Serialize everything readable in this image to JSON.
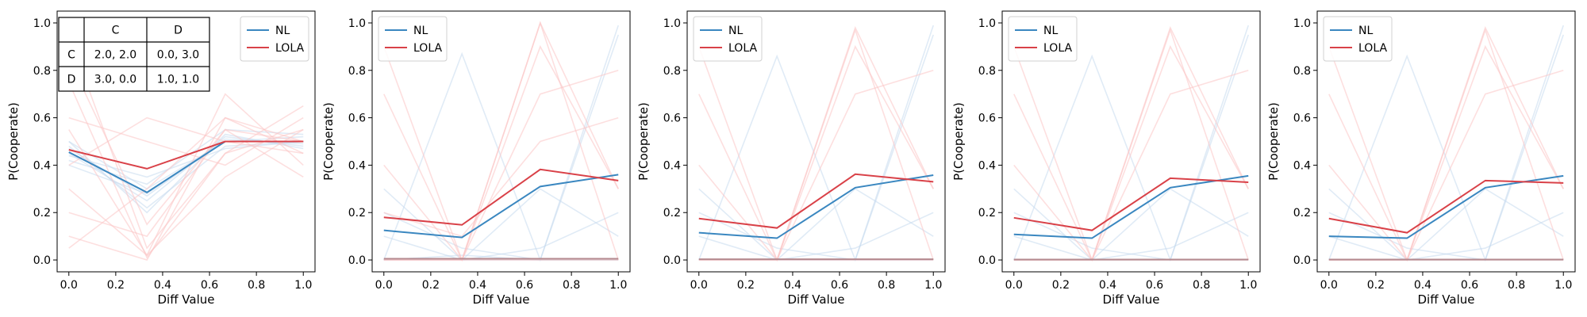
{
  "colors": {
    "nl": "#3a87c0",
    "lola": "#d94148",
    "nl_faint": "#c6dbef",
    "lola_faint": "#fbc4c4"
  },
  "chart_data": [
    {
      "type": "line",
      "xlabel": "Diff Value",
      "ylabel": "P(Cooperate)",
      "xlim": [
        -0.05,
        1.05
      ],
      "ylim": [
        -0.05,
        1.05
      ],
      "xticks": [
        "0.0",
        "0.2",
        "0.4",
        "0.6",
        "0.8",
        "1.0"
      ],
      "yticks": [
        "0.0",
        "0.2",
        "0.4",
        "0.6",
        "0.8",
        "1.0"
      ],
      "legend": {
        "placement": "top-right",
        "entries": [
          "NL",
          "LOLA"
        ]
      },
      "x": [
        0.0,
        0.333,
        0.667,
        1.0
      ],
      "series": [
        {
          "name": "NL",
          "values": [
            0.455,
            0.285,
            0.5,
            0.5
          ]
        },
        {
          "name": "LOLA",
          "values": [
            0.465,
            0.385,
            0.5,
            0.5
          ]
        }
      ],
      "faint_series": {
        "NL": [
          [
            0.5,
            0.3,
            0.5,
            0.5
          ],
          [
            0.45,
            0.25,
            0.52,
            0.48
          ],
          [
            0.42,
            0.32,
            0.55,
            0.53
          ],
          [
            0.48,
            0.22,
            0.48,
            0.5
          ],
          [
            0.4,
            0.28,
            0.5,
            0.52
          ],
          [
            0.5,
            0.2,
            0.53,
            0.47
          ],
          [
            0.44,
            0.35,
            0.47,
            0.5
          ],
          [
            0.47,
            0.27,
            0.51,
            0.49
          ]
        ],
        "LOLA": [
          [
            0.1,
            0.0,
            0.6,
            0.45
          ],
          [
            0.95,
            0.05,
            0.45,
            0.55
          ],
          [
            0.3,
            0.02,
            0.7,
            0.4
          ],
          [
            0.6,
            0.5,
            0.4,
            0.6
          ],
          [
            0.2,
            0.1,
            0.55,
            0.35
          ],
          [
            0.75,
            0.01,
            0.45,
            0.65
          ],
          [
            0.05,
            0.3,
            0.6,
            0.5
          ],
          [
            0.55,
            0.02,
            0.35,
            0.55
          ],
          [
            0.4,
            0.6,
            0.5,
            0.45
          ],
          [
            0.85,
            0.15,
            0.55,
            0.5
          ]
        ]
      },
      "payoff_table": {
        "col_headers": [
          "C",
          "D"
        ],
        "rows": [
          {
            "label": "C",
            "cells": [
              "2.0, 2.0",
              "0.0, 3.0"
            ]
          },
          {
            "label": "D",
            "cells": [
              "3.0, 0.0",
              "1.0, 1.0"
            ]
          }
        ]
      }
    },
    {
      "type": "line",
      "xlabel": "Diff Value",
      "ylabel": "P(Cooperate)",
      "xlim": [
        -0.05,
        1.05
      ],
      "ylim": [
        -0.05,
        1.05
      ],
      "xticks": [
        "0.0",
        "0.2",
        "0.4",
        "0.6",
        "0.8",
        "1.0"
      ],
      "yticks": [
        "0.0",
        "0.2",
        "0.4",
        "0.6",
        "0.8",
        "1.0"
      ],
      "legend": {
        "placement": "top-left",
        "entries": [
          "NL",
          "LOLA"
        ]
      },
      "x": [
        0.0,
        0.333,
        0.667,
        1.0
      ],
      "series": [
        {
          "name": "NL",
          "values": [
            0.125,
            0.095,
            0.31,
            0.36
          ]
        },
        {
          "name": "LOLA",
          "values": [
            0.18,
            0.148,
            0.382,
            0.335
          ]
        },
        {
          "name": "",
          "values": [
            0.005,
            0.005,
            0.005,
            0.005
          ]
        }
      ],
      "faint_series": {
        "NL": [
          [
            0.0,
            0.87,
            0.0,
            0.99
          ],
          [
            0.3,
            0.0,
            0.0,
            0.95
          ],
          [
            0.0,
            0.0,
            0.05,
            0.2
          ],
          [
            0.2,
            0.05,
            0.0,
            0.0
          ],
          [
            0.1,
            0.0,
            0.3,
            0.1
          ],
          [
            0.0,
            0.02,
            0.0,
            0.0
          ]
        ],
        "LOLA": [
          [
            0.7,
            0.0,
            1.0,
            0.3
          ],
          [
            0.0,
            0.0,
            1.0,
            0.0
          ],
          [
            0.4,
            0.0,
            0.7,
            0.8
          ],
          [
            0.9,
            0.0,
            0.0,
            0.0
          ],
          [
            0.0,
            0.0,
            0.9,
            0.3
          ],
          [
            0.2,
            0.1,
            0.5,
            0.6
          ]
        ]
      }
    },
    {
      "type": "line",
      "xlabel": "Diff Value",
      "ylabel": "P(Cooperate)",
      "xlim": [
        -0.05,
        1.05
      ],
      "ylim": [
        -0.05,
        1.05
      ],
      "xticks": [
        "0.0",
        "0.2",
        "0.4",
        "0.6",
        "0.8",
        "1.0"
      ],
      "yticks": [
        "0.0",
        "0.2",
        "0.4",
        "0.6",
        "0.8",
        "1.0"
      ],
      "legend": {
        "placement": "top-left",
        "entries": [
          "NL",
          "LOLA"
        ]
      },
      "x": [
        0.0,
        0.333,
        0.667,
        1.0
      ],
      "series": [
        {
          "name": "NL",
          "values": [
            0.115,
            0.092,
            0.305,
            0.358
          ]
        },
        {
          "name": "LOLA",
          "values": [
            0.175,
            0.135,
            0.362,
            0.33
          ]
        },
        {
          "name": "",
          "values": [
            0.003,
            0.003,
            0.003,
            0.003
          ]
        }
      ],
      "faint_series": {
        "NL": [
          [
            0.0,
            0.86,
            0.0,
            0.99
          ],
          [
            0.3,
            0.0,
            0.0,
            0.95
          ],
          [
            0.0,
            0.0,
            0.05,
            0.2
          ],
          [
            0.2,
            0.05,
            0.0,
            0.0
          ],
          [
            0.1,
            0.0,
            0.3,
            0.1
          ]
        ],
        "LOLA": [
          [
            0.7,
            0.0,
            0.98,
            0.3
          ],
          [
            0.0,
            0.0,
            0.97,
            0.0
          ],
          [
            0.4,
            0.0,
            0.7,
            0.8
          ],
          [
            0.9,
            0.0,
            0.0,
            0.0
          ],
          [
            0.0,
            0.0,
            0.9,
            0.3
          ]
        ]
      }
    },
    {
      "type": "line",
      "xlabel": "Diff Value",
      "ylabel": "P(Cooperate)",
      "xlim": [
        -0.05,
        1.05
      ],
      "ylim": [
        -0.05,
        1.05
      ],
      "xticks": [
        "0.0",
        "0.2",
        "0.4",
        "0.6",
        "0.8",
        "1.0"
      ],
      "yticks": [
        "0.0",
        "0.2",
        "0.4",
        "0.6",
        "0.8",
        "1.0"
      ],
      "legend": {
        "placement": "top-left",
        "entries": [
          "NL",
          "LOLA"
        ]
      },
      "x": [
        0.0,
        0.333,
        0.667,
        1.0
      ],
      "series": [
        {
          "name": "NL",
          "values": [
            0.108,
            0.092,
            0.305,
            0.355
          ]
        },
        {
          "name": "LOLA",
          "values": [
            0.178,
            0.125,
            0.345,
            0.328
          ]
        },
        {
          "name": "",
          "values": [
            0.002,
            0.002,
            0.002,
            0.002
          ]
        }
      ],
      "faint_series": {
        "NL": [
          [
            0.0,
            0.86,
            0.0,
            0.99
          ],
          [
            0.3,
            0.0,
            0.0,
            0.95
          ],
          [
            0.0,
            0.0,
            0.05,
            0.2
          ],
          [
            0.2,
            0.05,
            0.0,
            0.0
          ],
          [
            0.1,
            0.0,
            0.3,
            0.1
          ]
        ],
        "LOLA": [
          [
            0.7,
            0.0,
            0.98,
            0.3
          ],
          [
            0.0,
            0.0,
            0.97,
            0.0
          ],
          [
            0.4,
            0.0,
            0.7,
            0.8
          ],
          [
            0.9,
            0.0,
            0.0,
            0.0
          ],
          [
            0.0,
            0.0,
            0.9,
            0.3
          ]
        ]
      }
    },
    {
      "type": "line",
      "xlabel": "Diff Value",
      "ylabel": "P(Cooperate)",
      "xlim": [
        -0.05,
        1.05
      ],
      "ylim": [
        -0.05,
        1.05
      ],
      "xticks": [
        "0.0",
        "0.2",
        "0.4",
        "0.6",
        "0.8",
        "1.0"
      ],
      "yticks": [
        "0.0",
        "0.2",
        "0.4",
        "0.6",
        "0.8",
        "1.0"
      ],
      "legend": {
        "placement": "top-left",
        "entries": [
          "NL",
          "LOLA"
        ]
      },
      "x": [
        0.0,
        0.333,
        0.667,
        1.0
      ],
      "series": [
        {
          "name": "NL",
          "values": [
            0.1,
            0.092,
            0.305,
            0.355
          ]
        },
        {
          "name": "LOLA",
          "values": [
            0.175,
            0.115,
            0.335,
            0.325
          ]
        },
        {
          "name": "",
          "values": [
            0.002,
            0.002,
            0.002,
            0.002
          ]
        }
      ],
      "faint_series": {
        "NL": [
          [
            0.0,
            0.86,
            0.0,
            0.99
          ],
          [
            0.3,
            0.0,
            0.0,
            0.95
          ],
          [
            0.0,
            0.0,
            0.05,
            0.2
          ],
          [
            0.2,
            0.05,
            0.0,
            0.0
          ],
          [
            0.1,
            0.0,
            0.3,
            0.1
          ]
        ],
        "LOLA": [
          [
            0.7,
            0.0,
            0.98,
            0.3
          ],
          [
            0.0,
            0.0,
            0.97,
            0.0
          ],
          [
            0.4,
            0.0,
            0.7,
            0.8
          ],
          [
            0.9,
            0.0,
            0.0,
            0.0
          ],
          [
            0.0,
            0.0,
            0.9,
            0.3
          ]
        ]
      }
    }
  ]
}
